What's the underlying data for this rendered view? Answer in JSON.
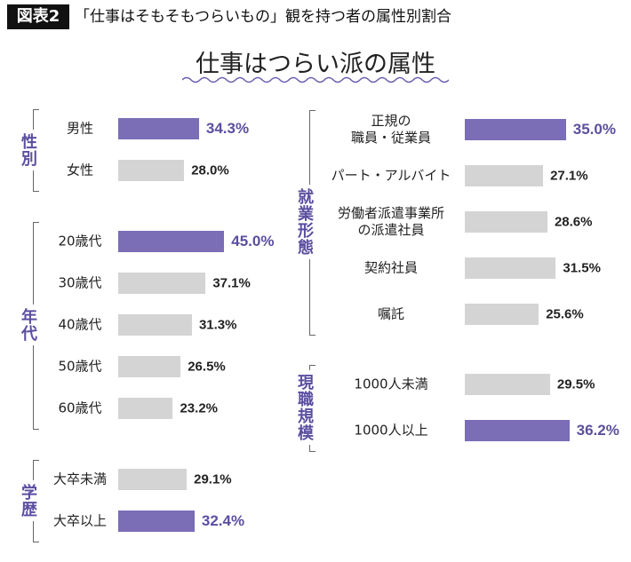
{
  "chart_data": {
    "type": "bar",
    "orientation": "horizontal",
    "figure_label": "図表2",
    "title": "「仕事はそもそもつらいもの」観を持つ者の属性別割合",
    "subtitle": "仕事はつらい派の属性",
    "panels": [
      {
        "groups": [
          {
            "name": "性別",
            "categories": [
              "男性",
              "女性"
            ],
            "values": [
              34.3,
              28.0
            ],
            "value_labels": [
              "34.3%",
              "28.0%"
            ],
            "colors": [
              "#7b6db6",
              "#d4d4d4"
            ]
          },
          {
            "name": "年代",
            "categories": [
              "20歳代",
              "30歳代",
              "40歳代",
              "50歳代",
              "60歳代"
            ],
            "values": [
              45.0,
              37.1,
              31.3,
              26.5,
              23.2
            ],
            "value_labels": [
              "45.0%",
              "37.1%",
              "31.3%",
              "26.5%",
              "23.2%"
            ],
            "colors": [
              "#7b6db6",
              "#d4d4d4",
              "#d4d4d4",
              "#d4d4d4",
              "#d4d4d4"
            ]
          },
          {
            "name": "学歴",
            "categories": [
              "大卒未満",
              "大卒以上"
            ],
            "values": [
              29.1,
              32.4
            ],
            "value_labels": [
              "29.1%",
              "32.4%"
            ],
            "colors": [
              "#d4d4d4",
              "#7b6db6"
            ]
          }
        ]
      },
      {
        "groups": [
          {
            "name": "就業形態",
            "categories": [
              "正規の\n職員・従業員",
              "パート・アルバイト",
              "労働者派遣事業所\nの派遣社員",
              "契約社員",
              "嘱託"
            ],
            "values": [
              35.0,
              27.1,
              28.6,
              31.5,
              25.6
            ],
            "value_labels": [
              "35.0%",
              "27.1%",
              "28.6%",
              "31.5%",
              "25.6%"
            ],
            "colors": [
              "#7b6db6",
              "#d4d4d4",
              "#d4d4d4",
              "#d4d4d4",
              "#d4d4d4"
            ]
          },
          {
            "name": "現職規模",
            "categories": [
              "1000人未満",
              "1000人以上"
            ],
            "values": [
              29.5,
              36.2
            ],
            "value_labels": [
              "29.5%",
              "36.2%"
            ],
            "colors": [
              "#d4d4d4",
              "#7b6db6"
            ]
          }
        ]
      }
    ]
  }
}
